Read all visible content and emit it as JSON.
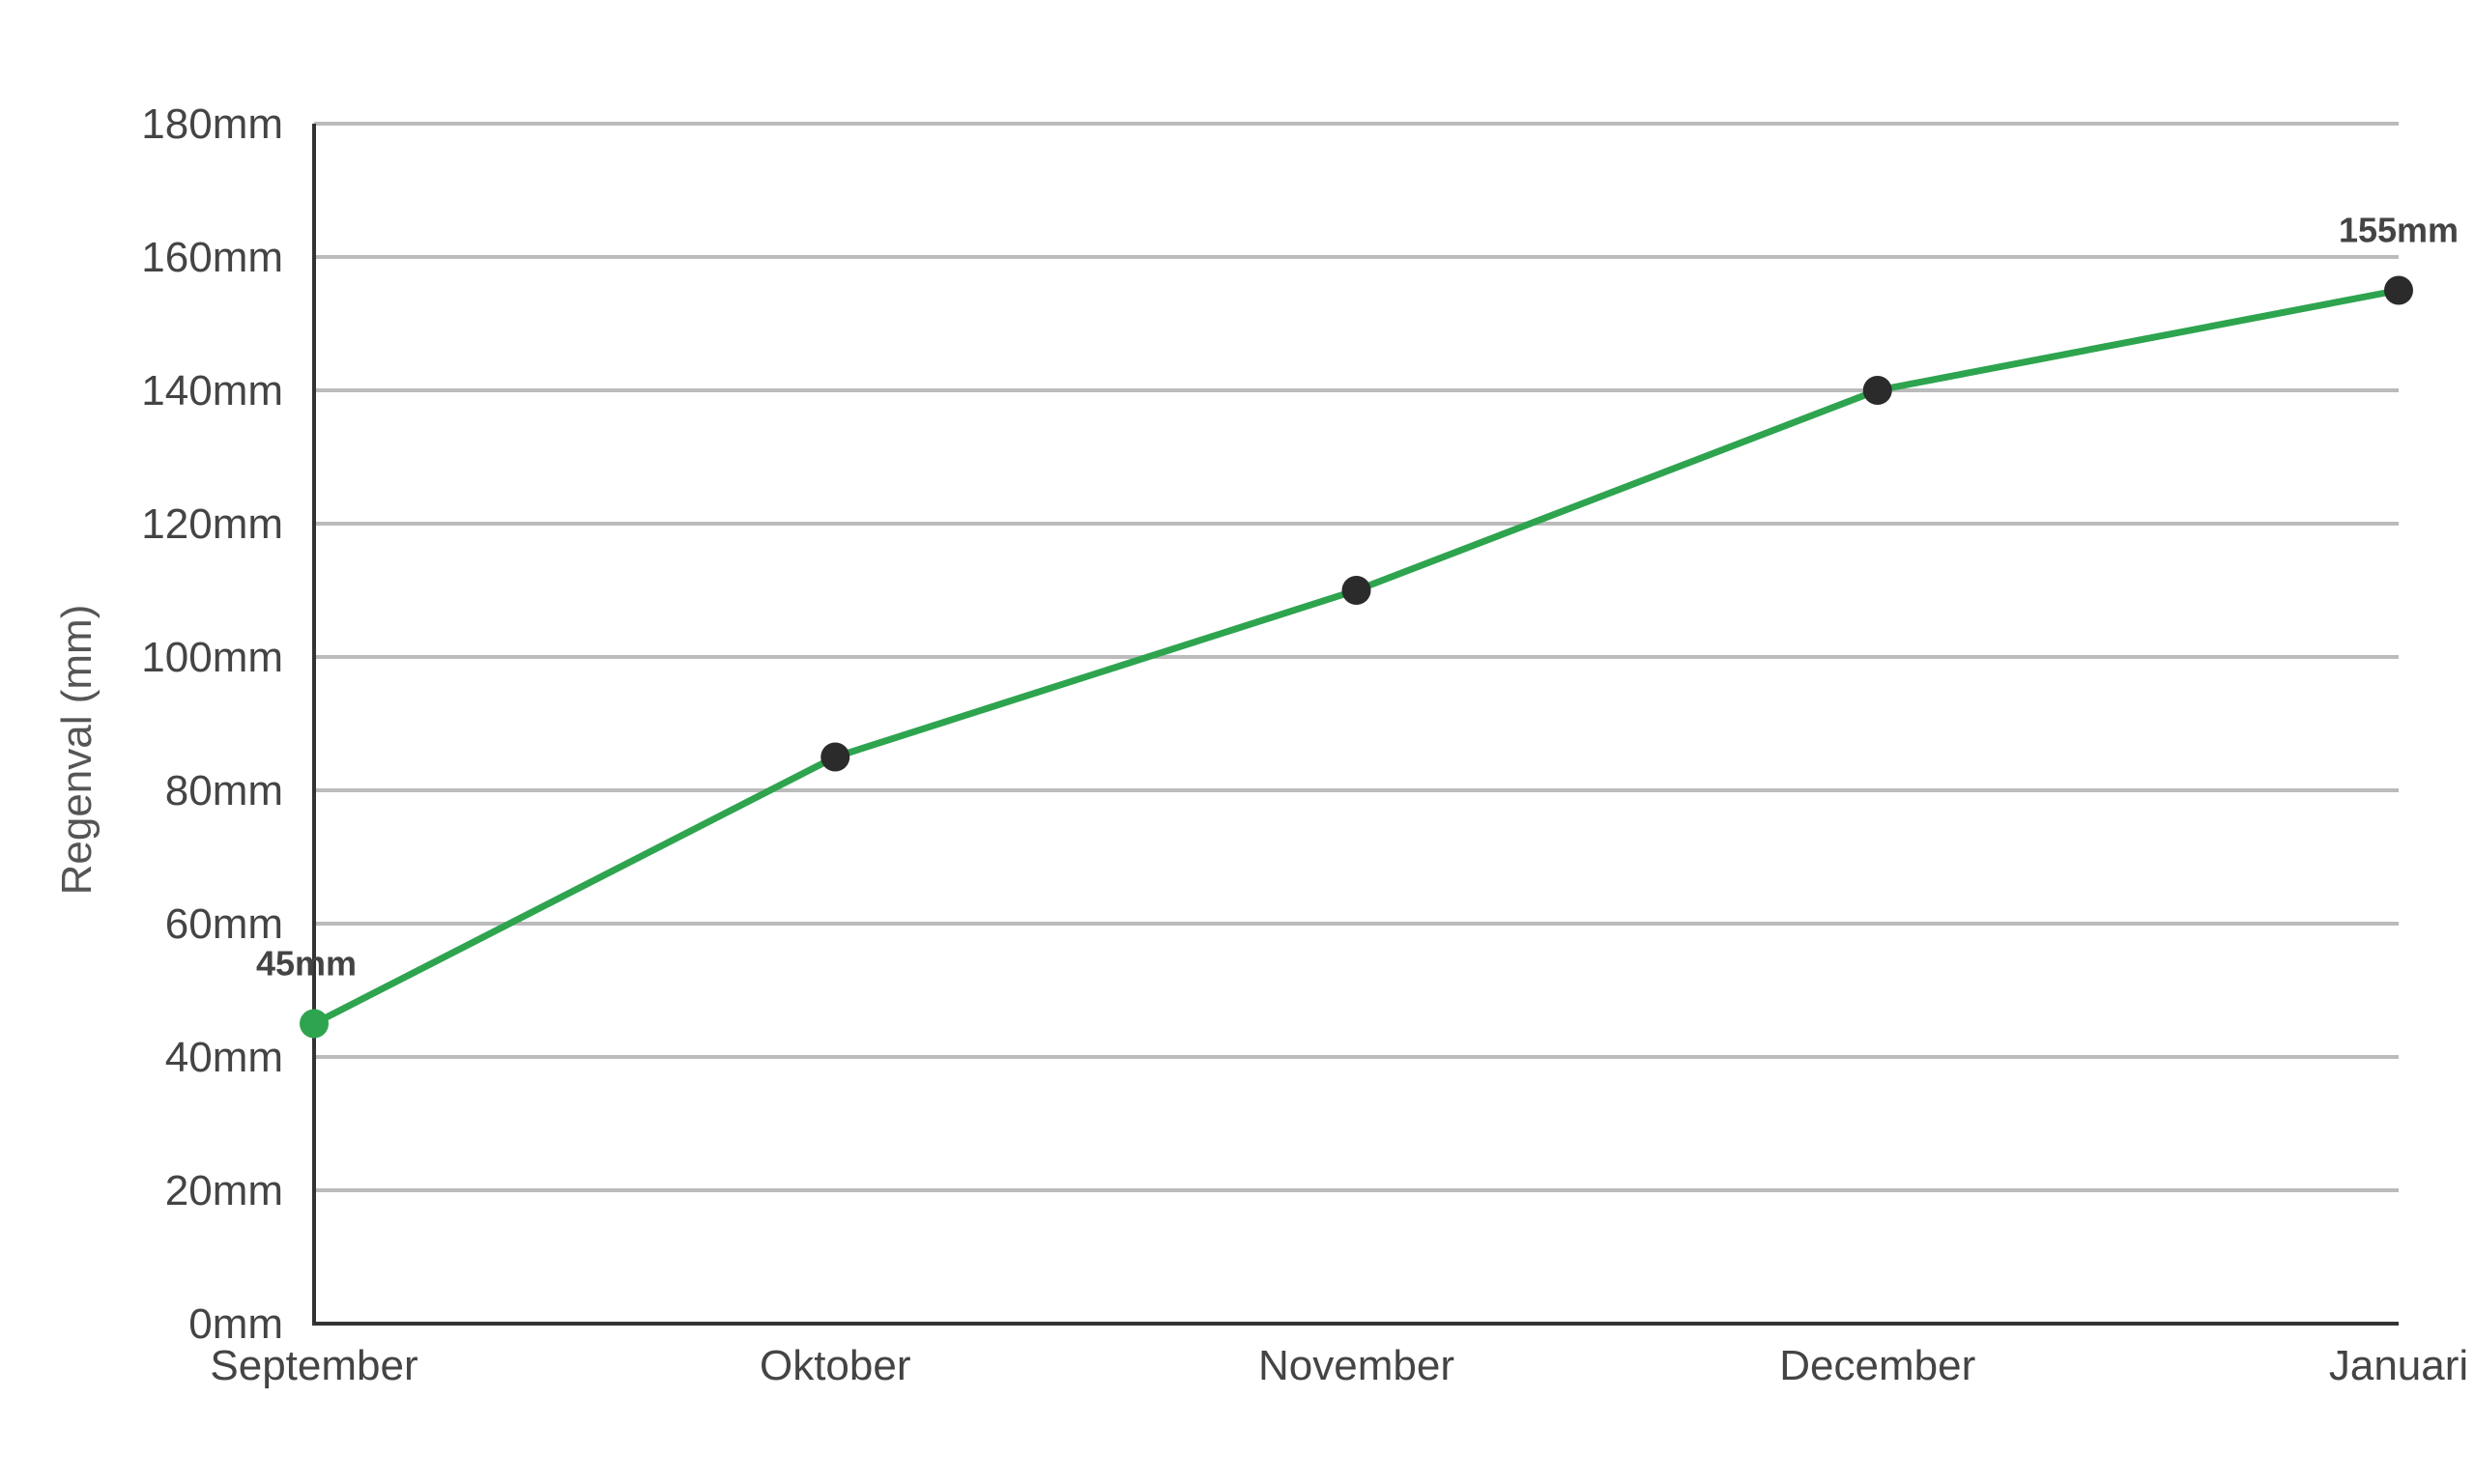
{
  "chart_data": {
    "type": "line",
    "ylabel": "Regenval (mm)",
    "xlabel": "",
    "categories": [
      "September",
      "Oktober",
      "November",
      "December",
      "Januari"
    ],
    "series": [
      {
        "values": [
          45,
          85,
          110,
          140,
          155
        ]
      }
    ],
    "ylim": [
      0,
      180
    ],
    "yticks": [
      0,
      20,
      40,
      60,
      80,
      100,
      120,
      140,
      160,
      180
    ],
    "ytick_suffix": "mm",
    "data_labels": [
      {
        "category": "September",
        "text": "45mm"
      },
      {
        "category": "Januari",
        "text": "155mm"
      }
    ],
    "grid": true,
    "legend": "none",
    "colors": {
      "line": "#2ea44f",
      "marker": "#2b2b2b",
      "first_marker": "#2ea44f",
      "grid": "#bbbbbb",
      "axis": "#333333"
    }
  }
}
